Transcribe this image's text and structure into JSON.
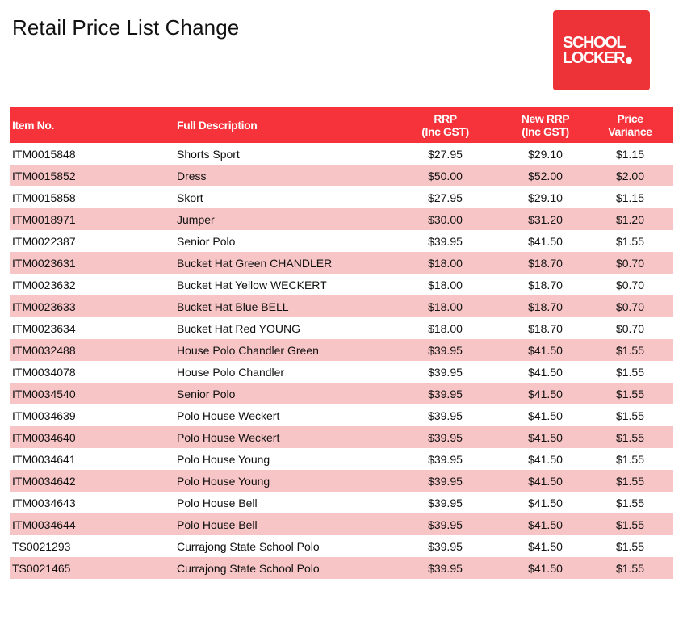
{
  "page": {
    "title": "Retail Price List Change"
  },
  "logo": {
    "line1": "SCHOOL",
    "line2": "LOCKER",
    "color": "#ee3338"
  },
  "colors": {
    "header_bg": "#f6333b",
    "stripe_bg": "#f7c5c6",
    "plain_bg": "#ffffff"
  },
  "table": {
    "headers": {
      "item_no": "Item No.",
      "full_description": "Full Description",
      "rrp": [
        "RRP",
        "(Inc GST)"
      ],
      "new_rrp": [
        "New RRP",
        "(Inc GST)"
      ],
      "price_variance": [
        "Price",
        "Variance"
      ]
    },
    "rows": [
      {
        "item": "ITM0015848",
        "desc": "Shorts Sport",
        "rrp": "$27.95",
        "new_rrp": "$29.10",
        "variance": "$1.15"
      },
      {
        "item": "ITM0015852",
        "desc": "Dress",
        "rrp": "$50.00",
        "new_rrp": "$52.00",
        "variance": "$2.00"
      },
      {
        "item": "ITM0015858",
        "desc": "Skort",
        "rrp": "$27.95",
        "new_rrp": "$29.10",
        "variance": "$1.15"
      },
      {
        "item": "ITM0018971",
        "desc": "Jumper",
        "rrp": "$30.00",
        "new_rrp": "$31.20",
        "variance": "$1.20"
      },
      {
        "item": "ITM0022387",
        "desc": "Senior Polo",
        "rrp": "$39.95",
        "new_rrp": "$41.50",
        "variance": "$1.55"
      },
      {
        "item": "ITM0023631",
        "desc": "Bucket Hat Green CHANDLER",
        "rrp": "$18.00",
        "new_rrp": "$18.70",
        "variance": "$0.70"
      },
      {
        "item": "ITM0023632",
        "desc": "Bucket Hat Yellow WECKERT",
        "rrp": "$18.00",
        "new_rrp": "$18.70",
        "variance": "$0.70"
      },
      {
        "item": "ITM0023633",
        "desc": "Bucket Hat Blue BELL",
        "rrp": "$18.00",
        "new_rrp": "$18.70",
        "variance": "$0.70"
      },
      {
        "item": "ITM0023634",
        "desc": "Bucket Hat Red YOUNG",
        "rrp": "$18.00",
        "new_rrp": "$18.70",
        "variance": "$0.70"
      },
      {
        "item": "ITM0032488",
        "desc": "House Polo Chandler Green",
        "rrp": "$39.95",
        "new_rrp": "$41.50",
        "variance": "$1.55"
      },
      {
        "item": "ITM0034078",
        "desc": "House Polo Chandler",
        "rrp": "$39.95",
        "new_rrp": "$41.50",
        "variance": "$1.55"
      },
      {
        "item": "ITM0034540",
        "desc": "Senior Polo",
        "rrp": "$39.95",
        "new_rrp": "$41.50",
        "variance": "$1.55"
      },
      {
        "item": "ITM0034639",
        "desc": "Polo House Weckert",
        "rrp": "$39.95",
        "new_rrp": "$41.50",
        "variance": "$1.55"
      },
      {
        "item": "ITM0034640",
        "desc": "Polo House Weckert",
        "rrp": "$39.95",
        "new_rrp": "$41.50",
        "variance": "$1.55"
      },
      {
        "item": "ITM0034641",
        "desc": "Polo House Young",
        "rrp": "$39.95",
        "new_rrp": "$41.50",
        "variance": "$1.55"
      },
      {
        "item": "ITM0034642",
        "desc": "Polo House Young",
        "rrp": "$39.95",
        "new_rrp": "$41.50",
        "variance": "$1.55"
      },
      {
        "item": "ITM0034643",
        "desc": "Polo House Bell",
        "rrp": "$39.95",
        "new_rrp": "$41.50",
        "variance": "$1.55"
      },
      {
        "item": "ITM0034644",
        "desc": "Polo House Bell",
        "rrp": "$39.95",
        "new_rrp": "$41.50",
        "variance": "$1.55"
      },
      {
        "item": "TS0021293",
        "desc": "Currajong State School Polo",
        "rrp": "$39.95",
        "new_rrp": "$41.50",
        "variance": "$1.55"
      },
      {
        "item": "TS0021465",
        "desc": "Currajong State School Polo",
        "rrp": "$39.95",
        "new_rrp": "$41.50",
        "variance": "$1.55"
      }
    ]
  }
}
